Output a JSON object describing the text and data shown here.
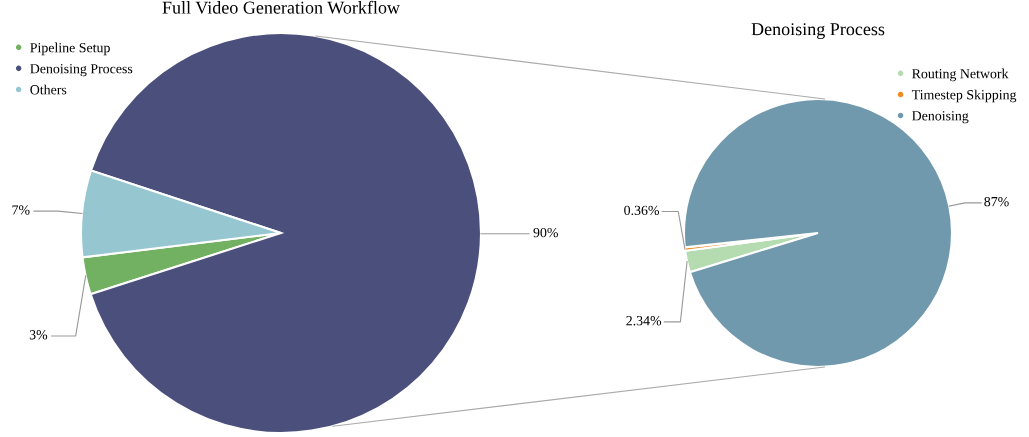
{
  "chart_data": [
    {
      "type": "pie",
      "title": "Full Video Generation Workflow",
      "categories": [
        "Pipeline Setup",
        "Denoising Process",
        "Others"
      ],
      "values": [
        3,
        90,
        7
      ],
      "colors": [
        "#72b062",
        "#4b4f7c",
        "#96c6cf"
      ],
      "value_labels": [
        "3%",
        "90%",
        "7%"
      ],
      "legend": "top left"
    },
    {
      "type": "pie",
      "title": "Denoising Process",
      "categories": [
        "Routing Network",
        "Timestep Skipping",
        "Denoising"
      ],
      "values": [
        2.34,
        0.36,
        87
      ],
      "colors": [
        "#b5dcb0",
        "#f08a24",
        "#7199ad"
      ],
      "value_labels": [
        "2.34%",
        "0.36%",
        "87%"
      ],
      "legend": "top right"
    }
  ]
}
